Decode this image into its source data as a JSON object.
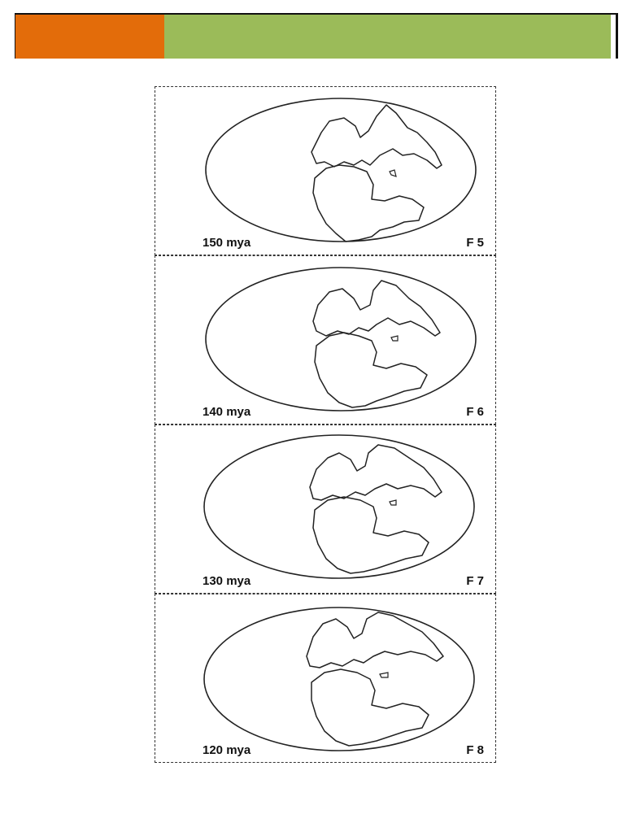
{
  "header": {
    "accent_left_color": "#e36c0a",
    "accent_right_color": "#9bbb59"
  },
  "frames": [
    {
      "era": "150 mya",
      "frame": "F 5",
      "globe_icon": "continent-map-icon"
    },
    {
      "era": "140 mya",
      "frame": "F 6",
      "globe_icon": "continent-map-icon"
    },
    {
      "era": "130 mya",
      "frame": "F 7",
      "globe_icon": "continent-map-icon"
    },
    {
      "era": "120 mya",
      "frame": "F 8",
      "globe_icon": "continent-map-icon"
    }
  ]
}
